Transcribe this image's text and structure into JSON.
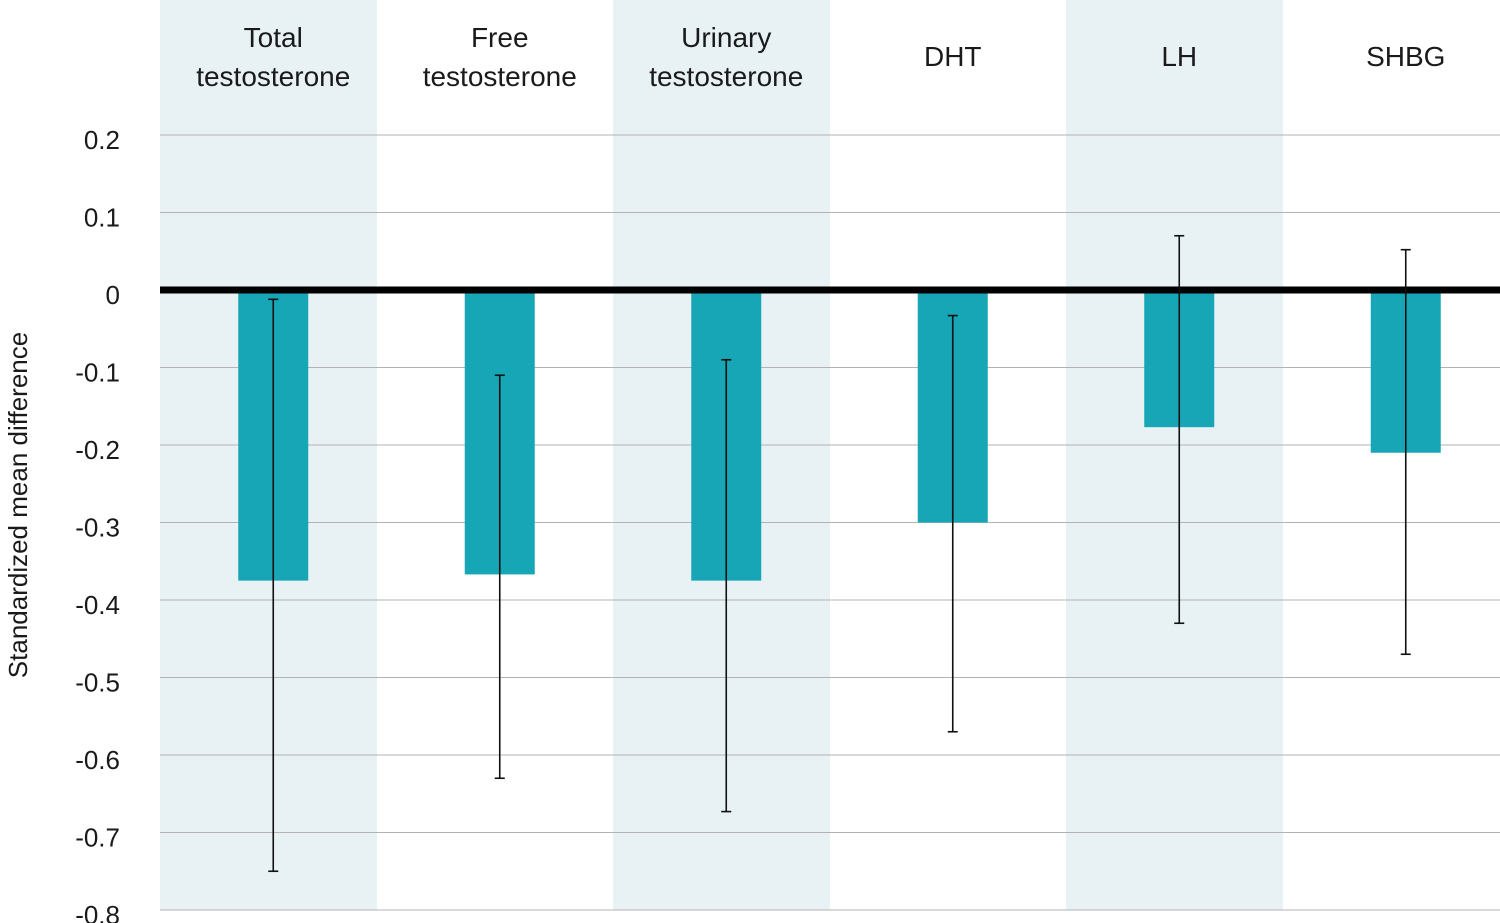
{
  "chart_data": {
    "type": "bar",
    "title": "",
    "xlabel": "",
    "ylabel": "Standardized mean difference",
    "ylim": [
      -0.8,
      0.2
    ],
    "yticks": [
      "0.2",
      "0.1",
      "0",
      "-0.1",
      "-0.2",
      "-0.3",
      "-0.4",
      "-0.5",
      "-0.6",
      "-0.7",
      "-0.8"
    ],
    "ytick_values": [
      0.2,
      0.1,
      0,
      -0.1,
      -0.2,
      -0.3,
      -0.4,
      -0.5,
      -0.6,
      -0.7,
      -0.8
    ],
    "grid": true,
    "categories": [
      [
        "Total",
        "testosterone"
      ],
      [
        "Free",
        "testosterone"
      ],
      [
        "Urinary",
        "testosterone"
      ],
      [
        "DHT"
      ],
      [
        "LH"
      ],
      [
        "SHBG"
      ]
    ],
    "values": [
      -0.375,
      -0.367,
      -0.375,
      -0.3,
      -0.177,
      -0.21
    ],
    "error_low": [
      -0.75,
      -0.63,
      -0.673,
      -0.57,
      -0.43,
      -0.47
    ],
    "error_high": [
      -0.012,
      -0.11,
      -0.09,
      -0.033,
      0.07,
      0.052
    ],
    "bar_color": "#17a6b5",
    "band_color": "#e8f2f5",
    "shaded_columns": [
      0,
      2,
      4
    ]
  }
}
